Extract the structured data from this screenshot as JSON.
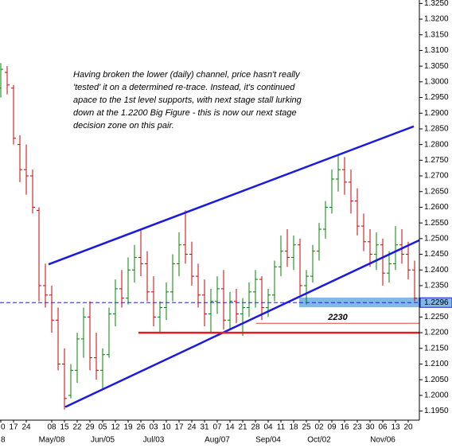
{
  "chart_data": {
    "type": "ohlc",
    "annotation": [
      "Having broken the lower (daily) channel, price hasn't really",
      "'tested' it on a determined re-trace. Instead, it's continued",
      "apace to the 1st level supports, with next stage stall lurking",
      "down at the 1.2200 Big Figure - this is now our next stage",
      "decision zone on this pair."
    ],
    "categories": [
      "0",
      null,
      "17",
      null,
      "24",
      null,
      null,
      null,
      "08",
      null,
      "15",
      null,
      "22",
      null,
      "29",
      null,
      "05",
      null,
      "12",
      null,
      "19",
      null,
      "26",
      null,
      "03",
      null,
      "10",
      null,
      "17",
      null,
      "24",
      null,
      "31",
      null,
      "07",
      null,
      "14",
      null,
      "21",
      null,
      "28",
      null,
      "04",
      null,
      "11",
      null,
      "18",
      null,
      "25",
      null,
      "02",
      null,
      "09",
      null,
      "16",
      null,
      "23",
      null,
      "30",
      null,
      "06",
      null,
      "13",
      null,
      "20",
      null
    ],
    "month_labels": [
      "8",
      null,
      null,
      null,
      null,
      null,
      null,
      null,
      "May/08",
      null,
      null,
      null,
      null,
      null,
      null,
      null,
      "Jun/05",
      null,
      null,
      null,
      null,
      null,
      null,
      null,
      "Jul/03",
      null,
      null,
      null,
      null,
      null,
      null,
      null,
      null,
      null,
      "Aug/07",
      null,
      null,
      null,
      null,
      null,
      null,
      null,
      "Sep/04",
      null,
      null,
      null,
      null,
      null,
      null,
      null,
      "Oct/02",
      null,
      null,
      null,
      null,
      null,
      null,
      null,
      null,
      null,
      "Nov/06",
      null,
      null,
      null,
      null,
      null
    ],
    "open": [
      1.298,
      1.303,
      1.298,
      1.28,
      1.272,
      1.27,
      1.259,
      1.235,
      1.232,
      1.224,
      1.21,
      1.2,
      1.208,
      1.218,
      1.225,
      1.212,
      1.208,
      1.213,
      1.226,
      1.234,
      1.231,
      1.24,
      1.244,
      1.242,
      1.233,
      1.225,
      1.228,
      1.233,
      1.242,
      1.248,
      1.245,
      1.238,
      1.232,
      1.226,
      1.23,
      1.234,
      1.224,
      1.23,
      1.226,
      1.228,
      1.233,
      1.237,
      1.228,
      1.232,
      1.241,
      1.246,
      1.244,
      1.248,
      1.235,
      1.238,
      1.246,
      1.253,
      1.26,
      1.269,
      1.272,
      1.268,
      1.262,
      1.254,
      1.249,
      1.245,
      1.248,
      1.239,
      1.242,
      1.248,
      1.245,
      1.24
    ],
    "high": [
      1.306,
      1.305,
      1.299,
      1.283,
      1.28,
      1.272,
      1.26,
      1.242,
      1.235,
      1.228,
      1.215,
      1.21,
      1.22,
      1.228,
      1.23,
      1.22,
      1.215,
      1.228,
      1.237,
      1.24,
      1.244,
      1.248,
      1.253,
      1.246,
      1.238,
      1.23,
      1.236,
      1.245,
      1.252,
      1.259,
      1.249,
      1.242,
      1.237,
      1.234,
      1.238,
      1.24,
      1.233,
      1.234,
      1.231,
      1.236,
      1.24,
      1.238,
      1.234,
      1.243,
      1.251,
      1.253,
      1.251,
      1.25,
      1.24,
      1.248,
      1.255,
      1.262,
      1.272,
      1.277,
      1.276,
      1.272,
      1.266,
      1.258,
      1.253,
      1.252,
      1.25,
      1.246,
      1.254,
      1.253,
      1.249,
      1.243
    ],
    "low": [
      1.295,
      1.296,
      1.28,
      1.268,
      1.264,
      1.258,
      1.23,
      1.228,
      1.22,
      1.208,
      1.1955,
      1.199,
      1.204,
      1.212,
      1.208,
      1.205,
      1.202,
      1.212,
      1.222,
      1.228,
      1.229,
      1.236,
      1.238,
      1.23,
      1.222,
      1.22,
      1.224,
      1.23,
      1.238,
      1.242,
      1.235,
      1.228,
      1.222,
      1.22,
      1.226,
      1.221,
      1.221,
      1.223,
      1.219,
      1.225,
      1.228,
      1.224,
      1.225,
      1.23,
      1.238,
      1.241,
      1.24,
      1.232,
      1.229,
      1.236,
      1.243,
      1.25,
      1.258,
      1.265,
      1.264,
      1.258,
      1.251,
      1.246,
      1.241,
      1.24,
      1.235,
      1.236,
      1.24,
      1.242,
      1.237,
      1.23
    ],
    "close": [
      1.304,
      1.299,
      1.282,
      1.272,
      1.27,
      1.26,
      1.235,
      1.232,
      1.224,
      1.21,
      1.199,
      1.208,
      1.218,
      1.225,
      1.212,
      1.208,
      1.213,
      1.226,
      1.234,
      1.231,
      1.24,
      1.244,
      1.242,
      1.233,
      1.225,
      1.228,
      1.233,
      1.242,
      1.248,
      1.245,
      1.238,
      1.232,
      1.226,
      1.23,
      1.234,
      1.224,
      1.23,
      1.226,
      1.228,
      1.233,
      1.237,
      1.228,
      1.232,
      1.241,
      1.246,
      1.244,
      1.248,
      1.235,
      1.238,
      1.246,
      1.253,
      1.26,
      1.269,
      1.272,
      1.268,
      1.262,
      1.254,
      1.249,
      1.245,
      1.248,
      1.239,
      1.242,
      1.248,
      1.245,
      1.24,
      1.231
    ],
    "up_color": "#008000",
    "down_color": "#cc0000",
    "xlim": [
      -0.125,
      65.75
    ],
    "ylim": [
      1.1921,
      1.3261
    ],
    "yticks": [
      {
        "value": 1.195,
        "label": "1.1950"
      },
      {
        "value": 1.2,
        "label": "1.2000"
      },
      {
        "value": 1.205,
        "label": "1.2050"
      },
      {
        "value": 1.21,
        "label": "1.2100"
      },
      {
        "value": 1.215,
        "label": "1.2150"
      },
      {
        "value": 1.22,
        "label": "1.2200"
      },
      {
        "value": 1.225,
        "label": "1.2250"
      },
      {
        "value": 1.23,
        "label": "1.2300"
      },
      {
        "value": 1.235,
        "label": "1.2350"
      },
      {
        "value": 1.24,
        "label": "1.2400"
      },
      {
        "value": 1.245,
        "label": "1.2450"
      },
      {
        "value": 1.25,
        "label": "1.2500"
      },
      {
        "value": 1.255,
        "label": "1.2550"
      },
      {
        "value": 1.26,
        "label": "1.2600"
      },
      {
        "value": 1.265,
        "label": "1.2650"
      },
      {
        "value": 1.27,
        "label": "1.2700"
      },
      {
        "value": 1.275,
        "label": "1.2750"
      },
      {
        "value": 1.28,
        "label": "1.2800"
      },
      {
        "value": 1.285,
        "label": "1.2850"
      },
      {
        "value": 1.29,
        "label": "1.2900"
      },
      {
        "value": 1.295,
        "label": "1.2950"
      },
      {
        "value": 1.3,
        "label": "1.3000"
      },
      {
        "value": 1.305,
        "label": "1.3050"
      },
      {
        "value": 1.31,
        "label": "1.3100"
      },
      {
        "value": 1.315,
        "label": "1.3150"
      },
      {
        "value": 1.32,
        "label": "1.3200"
      },
      {
        "value": 1.325,
        "label": "1.3250"
      }
    ],
    "zone": {
      "x": [
        46.875,
        65.75
      ],
      "y": [
        1.2281,
        1.2312
      ],
      "color": "#80b8e8"
    },
    "current": {
      "value": 1.2296,
      "label": "1.2296",
      "color": "#2020d0"
    },
    "lines": [
      {
        "x": [
          7.5,
          64.875
        ],
        "y": [
          1.2418,
          1.2858
        ],
        "color": "#1a1ae0"
      },
      {
        "x": [
          10.125,
          65.75
        ],
        "y": [
          1.1963,
          1.2495
        ],
        "color": "#1a1ae0"
      },
      {
        "x": [
          21.625,
          65.75
        ],
        "y": [
          1.22,
          1.22
        ],
        "color": "#e02020"
      },
      {
        "x": [
          40.125,
          65.75
        ],
        "y": [
          1.223,
          1.223
        ],
        "color": "#e04040",
        "label": "2230"
      }
    ]
  }
}
